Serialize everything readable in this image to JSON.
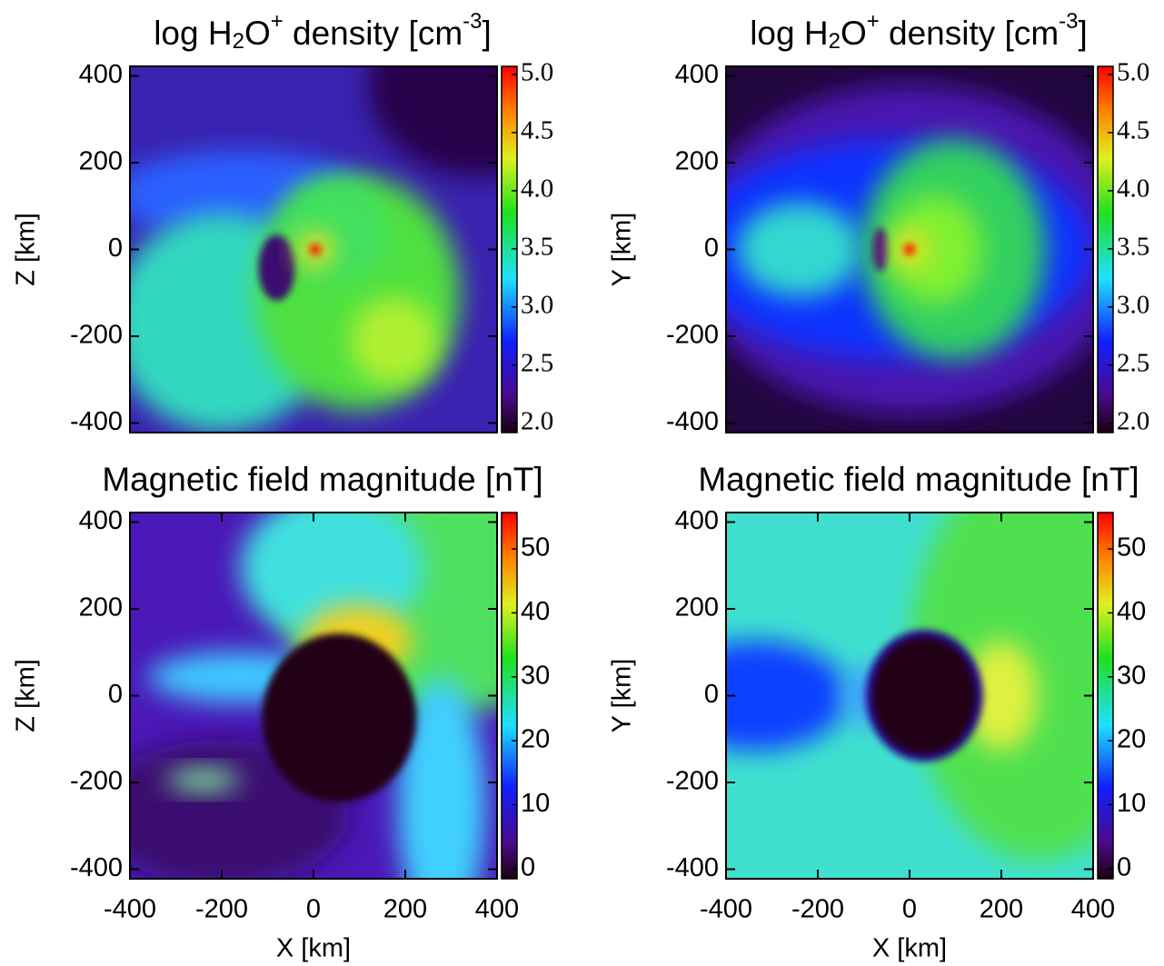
{
  "chart_data": [
    {
      "type": "heatmap",
      "title": [
        "log H",
        "2",
        "O",
        "+",
        " density [cm",
        "-3",
        "]"
      ],
      "ylabel": "Z [km]",
      "xlim": [
        -400,
        400
      ],
      "ylim": [
        -422,
        422
      ],
      "yticks": [
        -400,
        -200,
        0,
        200,
        400
      ],
      "colorbar": {
        "lim": [
          1.92,
          5.07
        ],
        "ticks": [
          {
            "value": 2,
            "label": "2.0"
          },
          2.5,
          3,
          3.5,
          4,
          4.5,
          5
        ],
        "labels": [
          "2.0",
          "2.5",
          "3.0",
          "3.5",
          "4.0",
          "4.5",
          "5.0"
        ]
      }
    },
    {
      "type": "heatmap",
      "title": [
        "log H",
        "2",
        "O",
        "+",
        " density [cm",
        "-3",
        "]"
      ],
      "ylabel": "Y [km]",
      "xlim": [
        -400,
        400
      ],
      "ylim": [
        -422,
        422
      ],
      "yticks": [
        -400,
        -200,
        0,
        200,
        400
      ],
      "colorbar": {
        "lim": [
          1.92,
          5.07
        ],
        "ticks": [
          {
            "value": 2,
            "label": "2.0"
          },
          2.5,
          3,
          3.5,
          4,
          4.5,
          5
        ],
        "labels": [
          "2.0",
          "2.5",
          "3.0",
          "3.5",
          "4.0",
          "4.5",
          "5.0"
        ]
      }
    },
    {
      "type": "heatmap",
      "title": "Magnetic field magnitude [nT]",
      "xlabel": "X [km]",
      "ylabel": "Z [km]",
      "xlim": [
        -400,
        400
      ],
      "ylim": [
        -422,
        422
      ],
      "xticks": [
        -400,
        -200,
        0,
        200,
        400
      ],
      "yticks": [
        -400,
        -200,
        0,
        200,
        400
      ],
      "colorbar": {
        "lim": [
          -1.6,
          55.7
        ],
        "ticks": [
          0,
          10,
          20,
          30,
          40,
          50
        ]
      }
    },
    {
      "type": "heatmap",
      "title": "Magnetic field magnitude [nT]",
      "xlabel": "X [km]",
      "ylabel": "Y [km]",
      "xlim": [
        -400,
        400
      ],
      "ylim": [
        -422,
        422
      ],
      "xticks": [
        -400,
        -200,
        0,
        200,
        400
      ],
      "yticks": [
        -400,
        -200,
        0,
        200,
        400
      ],
      "colorbar": {
        "lim": [
          -1.6,
          55.7
        ],
        "ticks": [
          0,
          10,
          20,
          30,
          40,
          50
        ]
      }
    }
  ]
}
